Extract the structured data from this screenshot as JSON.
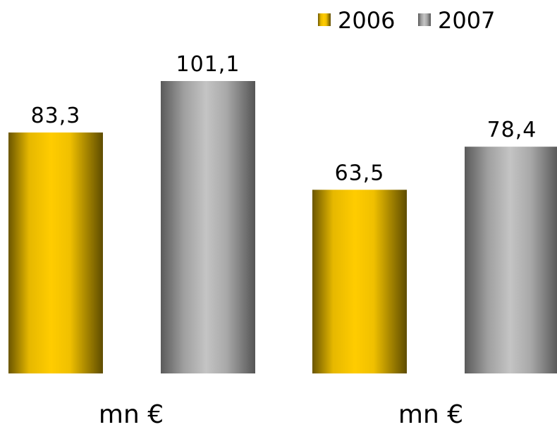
{
  "chart_data": {
    "type": "bar",
    "categories": [
      "mn €",
      "mn €"
    ],
    "series": [
      {
        "name": "2006",
        "values": [
          83.3,
          63.5
        ],
        "labels": [
          "83,3",
          "63,5"
        ],
        "color": "#FFCC00"
      },
      {
        "name": "2007",
        "values": [
          101.1,
          78.4
        ],
        "labels": [
          "101,1",
          "78,4"
        ],
        "color": "#B0B0B0"
      }
    ],
    "title": "",
    "xlabel": "",
    "ylabel": "",
    "ylim": [
      0,
      101.1
    ],
    "legend": "top-right",
    "grid": false
  }
}
